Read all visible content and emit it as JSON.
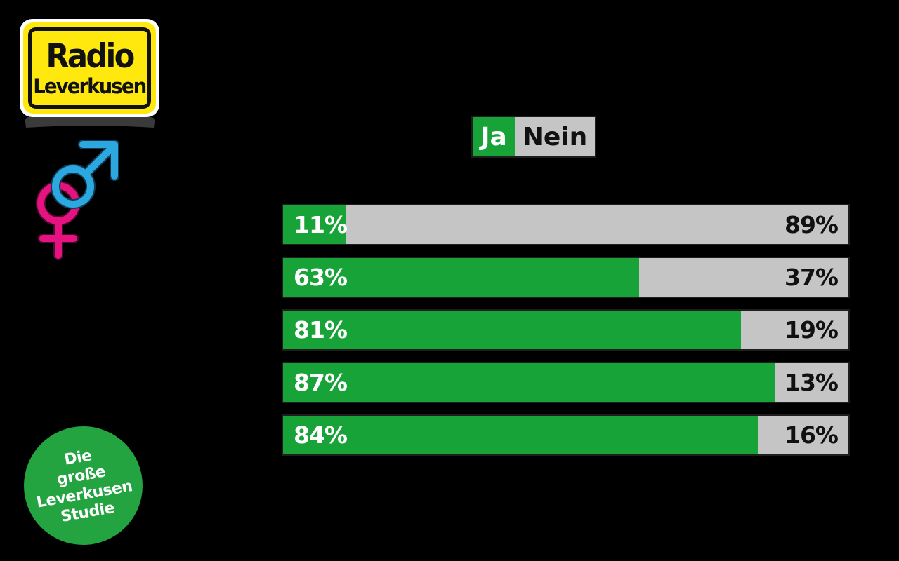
{
  "page": {
    "background": "#000000"
  },
  "logo": {
    "name": "Radio Leverkusen",
    "line1": "Radio",
    "line2": "Leverkusen",
    "colors": {
      "yellow": "#ffe80d",
      "sign_black": "#111111",
      "frame_white": "#ffffff",
      "swoosh": "#3a3a3a"
    }
  },
  "gender_icon": {
    "male_color": "#2aa8df",
    "male_outline": "#123a52",
    "female_color": "#e5127f",
    "female_outline": "#4a0b2e"
  },
  "legend": {
    "yes_label": "Ja",
    "no_label": "Nein",
    "yes_color": "#17a338",
    "no_color": "#c5c5c5"
  },
  "chart_data": {
    "type": "bar",
    "orientation": "horizontal",
    "stacked": true,
    "value_suffix": "%",
    "legend_position": "top-center",
    "category_labels_visible": false,
    "series": [
      {
        "name": "Ja",
        "color": "#17a338",
        "values": [
          11,
          63,
          81,
          87,
          84
        ]
      },
      {
        "name": "Nein",
        "color": "#c5c5c5",
        "values": [
          89,
          37,
          19,
          13,
          16
        ]
      }
    ],
    "rows": [
      {
        "ja": 11,
        "nein": 89,
        "ja_label": "11%",
        "nein_label": "89%"
      },
      {
        "ja": 63,
        "nein": 37,
        "ja_label": "63%",
        "nein_label": "37%"
      },
      {
        "ja": 81,
        "nein": 19,
        "ja_label": "81%",
        "nein_label": "19%"
      },
      {
        "ja": 87,
        "nein": 13,
        "ja_label": "87%",
        "nein_label": "13%"
      },
      {
        "ja": 84,
        "nein": 16,
        "ja_label": "84%",
        "nein_label": "16%"
      }
    ]
  },
  "badge": {
    "lines": [
      "Die",
      "große",
      "Leverkusen",
      "Studie"
    ],
    "color": "#23a440",
    "text_color": "#ffffff",
    "rotation_deg": -10
  }
}
